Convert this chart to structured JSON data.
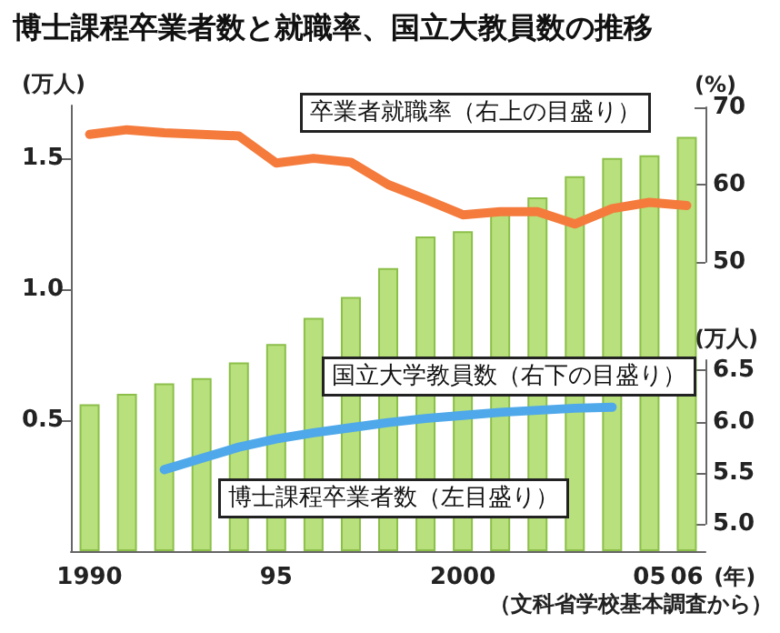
{
  "chart_data": {
    "type": "bar",
    "title": "博士課程卒業者数と就職率、国立大教員数の推移",
    "categories": [
      "1990",
      null,
      null,
      null,
      null,
      "95",
      null,
      null,
      null,
      null,
      "2000",
      null,
      null,
      null,
      null,
      "05",
      "06"
    ],
    "xlabel": "(年)",
    "ylabel": "(万人)",
    "y2label": "(%)",
    "y3label": "(万人)",
    "ylim": [
      0,
      1.7
    ],
    "yticks": [
      {
        "value": 0.5,
        "label": "0.5"
      },
      {
        "value": 1,
        "label": "1.0"
      },
      {
        "value": 1.5,
        "label": "1.5"
      }
    ],
    "y2lim": [
      50,
      70
    ],
    "y2ticks": [
      50,
      60,
      70
    ],
    "y3lim": [
      5,
      6.6
    ],
    "y3ticks": [
      {
        "value": 5,
        "label": "5.0"
      },
      {
        "value": 5.5,
        "label": "5.5"
      },
      {
        "value": 6,
        "label": "6.0"
      },
      {
        "value": 6.5,
        "label": "6.5"
      }
    ],
    "series": [
      {
        "name": "博士課程卒業者数（左目盛り）",
        "color": "#b8e07c",
        "values": [
          0.56,
          0.6,
          0.64,
          0.66,
          0.72,
          0.79,
          0.89,
          0.97,
          1.08,
          1.2,
          1.22,
          1.29,
          1.35,
          1.43,
          1.5,
          1.51,
          1.58
        ]
      },
      {
        "name": "卒業者就職率（右上の目盛り）",
        "type": "line",
        "axis": "y2",
        "color": "#f47b3c",
        "values": [
          66.5,
          67.1,
          66.7,
          66.5,
          66.3,
          62.8,
          63.4,
          62.9,
          60,
          58.1,
          56.1,
          56.5,
          56.5,
          54.9,
          56.9,
          57.7,
          57.3
        ]
      },
      {
        "name": "国立大学教員数（右下の目盛り）",
        "type": "line",
        "axis": "y3",
        "color": "#4ea8ea",
        "values": [
          null,
          null,
          5.53,
          5.64,
          5.75,
          5.83,
          5.89,
          5.94,
          5.99,
          6.03,
          6.06,
          6.09,
          6.11,
          6.13,
          6.14,
          null,
          null
        ]
      }
    ],
    "legend": false,
    "marker": "none",
    "line_style": "solid",
    "annotations": [
      "（文科省学校基本調査から）"
    ]
  }
}
